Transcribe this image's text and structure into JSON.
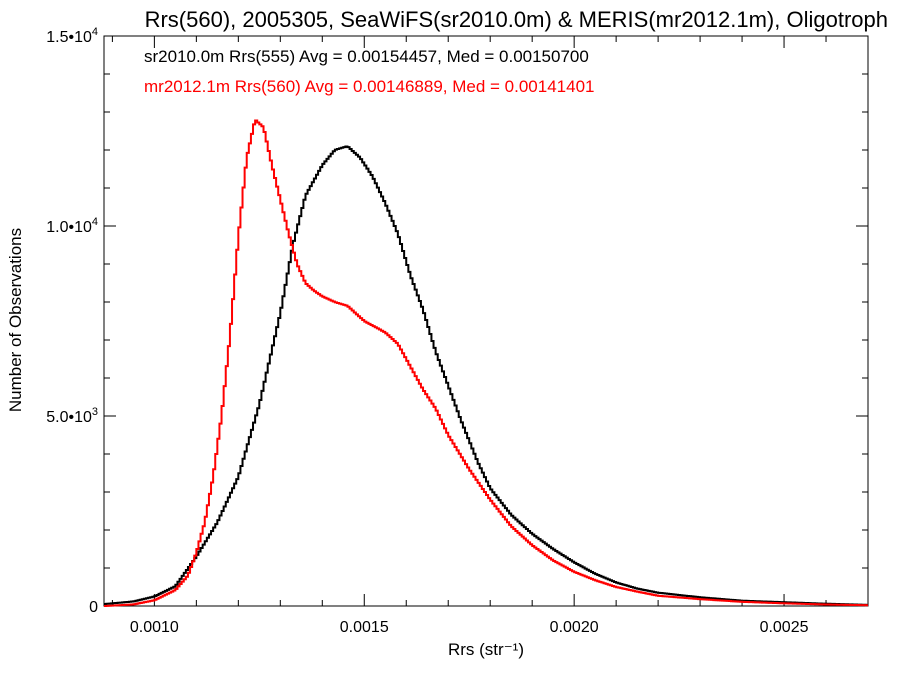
{
  "chart_data": {
    "type": "line",
    "title": "Rrs(560), 2005305, SeaWiFS(sr2010.0m) & MERIS(mr2012.1m), Oligotroph",
    "xlabel": "Rrs (str⁻¹)",
    "ylabel": "Number of Observations",
    "xlim": [
      0.00088,
      0.0027
    ],
    "ylim": [
      0,
      15000
    ],
    "x_ticks": [
      0.001,
      0.0015,
      0.002,
      0.0025
    ],
    "x_tick_labels": [
      "0.0010",
      "0.0015",
      "0.0020",
      "0.0025"
    ],
    "y_ticks": [
      0,
      5000,
      10000,
      15000
    ],
    "y_tick_labels": [
      {
        "mant": "0",
        "exp": ""
      },
      {
        "mant": "5.0•10",
        "exp": "3"
      },
      {
        "mant": "1.0•10",
        "exp": "4"
      },
      {
        "mant": "1.5•10",
        "exp": "4"
      }
    ],
    "grid": false,
    "legend_position": "top-left",
    "series": [
      {
        "name": "sr2010.0m Rrs(555) Avg = 0.00154457, Med = 0.00150700",
        "color": "#000000",
        "points": [
          [
            0.00088,
            50
          ],
          [
            0.00095,
            120
          ],
          [
            0.001,
            250
          ],
          [
            0.00105,
            520
          ],
          [
            0.0011,
            1300
          ],
          [
            0.00115,
            2200
          ],
          [
            0.0012,
            3400
          ],
          [
            0.00125,
            5300
          ],
          [
            0.0013,
            7700
          ],
          [
            0.00133,
            9500
          ],
          [
            0.00136,
            10800
          ],
          [
            0.0014,
            11600
          ],
          [
            0.00143,
            12000
          ],
          [
            0.00146,
            12100
          ],
          [
            0.00149,
            11800
          ],
          [
            0.00152,
            11300
          ],
          [
            0.00155,
            10600
          ],
          [
            0.00158,
            9800
          ],
          [
            0.00161,
            8700
          ],
          [
            0.00164,
            7800
          ],
          [
            0.00167,
            6700
          ],
          [
            0.0017,
            5800
          ],
          [
            0.00173,
            4900
          ],
          [
            0.00177,
            3800
          ],
          [
            0.0018,
            3100
          ],
          [
            0.00185,
            2400
          ],
          [
            0.0019,
            1900
          ],
          [
            0.00195,
            1500
          ],
          [
            0.002,
            1150
          ],
          [
            0.00205,
            850
          ],
          [
            0.0021,
            620
          ],
          [
            0.00215,
            460
          ],
          [
            0.0022,
            350
          ],
          [
            0.0023,
            230
          ],
          [
            0.0024,
            140
          ],
          [
            0.0025,
            100
          ],
          [
            0.0026,
            60
          ],
          [
            0.0027,
            30
          ]
        ]
      },
      {
        "name": "mr2012.1m Rrs(560) Avg = 0.00146889, Med = 0.00141401",
        "color": "#ff0000",
        "points": [
          [
            0.00088,
            0
          ],
          [
            0.00095,
            40
          ],
          [
            0.001,
            150
          ],
          [
            0.00105,
            420
          ],
          [
            0.00108,
            800
          ],
          [
            0.0011,
            1400
          ],
          [
            0.00112,
            2200
          ],
          [
            0.00114,
            3400
          ],
          [
            0.00116,
            5000
          ],
          [
            0.00118,
            7100
          ],
          [
            0.0012,
            9700
          ],
          [
            0.00122,
            11800
          ],
          [
            0.00124,
            12800
          ],
          [
            0.00126,
            12600
          ],
          [
            0.00128,
            11600
          ],
          [
            0.0013,
            10700
          ],
          [
            0.00132,
            9800
          ],
          [
            0.00134,
            9000
          ],
          [
            0.00136,
            8500
          ],
          [
            0.00138,
            8300
          ],
          [
            0.0014,
            8150
          ],
          [
            0.00143,
            8000
          ],
          [
            0.00146,
            7900
          ],
          [
            0.0015,
            7500
          ],
          [
            0.00155,
            7200
          ],
          [
            0.00158,
            6900
          ],
          [
            0.00161,
            6300
          ],
          [
            0.00164,
            5700
          ],
          [
            0.00167,
            5200
          ],
          [
            0.0017,
            4500
          ],
          [
            0.00175,
            3600
          ],
          [
            0.0018,
            2800
          ],
          [
            0.00185,
            2100
          ],
          [
            0.0019,
            1600
          ],
          [
            0.00195,
            1200
          ],
          [
            0.002,
            900
          ],
          [
            0.00205,
            680
          ],
          [
            0.0021,
            500
          ],
          [
            0.00215,
            380
          ],
          [
            0.0022,
            270
          ],
          [
            0.0023,
            180
          ],
          [
            0.0024,
            110
          ],
          [
            0.0025,
            70
          ],
          [
            0.0026,
            40
          ],
          [
            0.0027,
            20
          ]
        ]
      }
    ]
  }
}
